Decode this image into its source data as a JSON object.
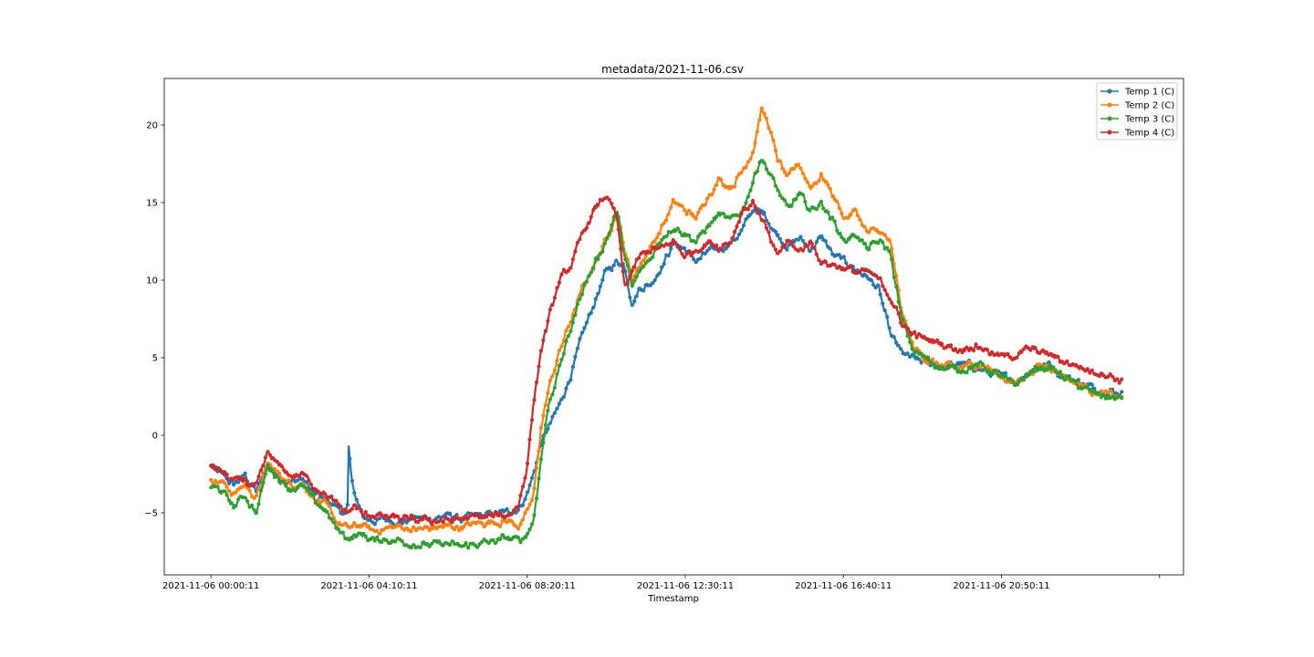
{
  "chart_data": {
    "type": "line",
    "title": "metadata/2021-11-06.csv",
    "xlabel": "Timestamp",
    "ylabel": "",
    "x_tick_labels": [
      "2021-11-06 00:00:11",
      "2021-11-06 04:10:11",
      "2021-11-06 08:20:11",
      "2021-11-06 12:30:11",
      "2021-11-06 16:40:11",
      "2021-11-06 20:50:11"
    ],
    "x_tick_hours": [
      0,
      4.1667,
      8.3333,
      12.5,
      16.6667,
      20.8333
    ],
    "xlim_hours": [
      -1.23,
      25.63
    ],
    "ylim": [
      -9.0,
      23.0
    ],
    "y_ticks": [
      -5,
      0,
      5,
      10,
      15,
      20
    ],
    "legend_position": "top-right",
    "grid": false,
    "series": [
      {
        "name": "Temp 1 (C)",
        "color": "#1f77b4",
        "x": [
          0,
          0.3,
          0.6,
          0.9,
          1.0,
          1.2,
          1.5,
          1.8,
          2.1,
          2.4,
          2.7,
          3.0,
          3.3,
          3.55,
          3.6,
          3.63,
          3.7,
          3.8,
          4.0,
          4.3,
          4.6,
          5.0,
          5.4,
          5.8,
          6.2,
          6.6,
          7.0,
          7.4,
          7.8,
          8.1,
          8.3,
          8.5,
          8.7,
          8.9,
          9.2,
          9.5,
          9.8,
          10.1,
          10.4,
          10.7,
          10.9,
          11.1,
          11.3,
          11.6,
          11.9,
          12.2,
          12.5,
          12.8,
          13.1,
          13.4,
          13.7,
          14.0,
          14.3,
          14.6,
          14.9,
          15.2,
          15.5,
          15.8,
          16.1,
          16.4,
          16.7,
          17.0,
          17.3,
          17.6,
          17.9,
          18.2,
          18.5,
          18.8,
          19.1,
          19.4,
          19.7,
          20.0,
          20.3,
          20.6,
          20.9,
          21.2,
          21.5,
          21.8,
          22.1,
          22.4,
          22.7,
          23.0,
          23.3,
          23.6,
          23.9,
          24.0
        ],
        "y": [
          -2.0,
          -2.6,
          -3.2,
          -2.6,
          -3.0,
          -3.6,
          -2.0,
          -2.6,
          -3.0,
          -2.8,
          -3.7,
          -4.2,
          -4.5,
          -5.2,
          -4.7,
          -1.0,
          -2.5,
          -4.0,
          -5.3,
          -5.5,
          -5.4,
          -5.6,
          -5.3,
          -5.4,
          -5.2,
          -5.4,
          -5.2,
          -5.1,
          -5.0,
          -4.7,
          -4.0,
          -2.5,
          -0.5,
          0.5,
          2.0,
          4.0,
          6.5,
          8.5,
          10.5,
          11.2,
          11.0,
          8.5,
          9.5,
          9.8,
          11.0,
          12.4,
          12.0,
          11.2,
          11.8,
          12.0,
          12.4,
          13.2,
          14.6,
          14.2,
          13.0,
          12.2,
          12.7,
          12.0,
          12.8,
          11.6,
          11.2,
          10.7,
          10.2,
          9.4,
          6.5,
          5.3,
          4.9,
          4.7,
          4.5,
          4.4,
          4.6,
          4.5,
          4.2,
          3.9,
          3.7,
          3.5,
          4.0,
          4.4,
          4.6,
          3.9,
          3.6,
          3.3,
          3.0,
          2.9,
          2.8,
          2.7
        ]
      },
      {
        "name": "Temp 2 (C)",
        "color": "#ff7f0e",
        "x": [
          0,
          0.3,
          0.6,
          0.9,
          1.0,
          1.2,
          1.5,
          1.8,
          2.1,
          2.4,
          2.7,
          3.0,
          3.3,
          3.6,
          4.0,
          4.3,
          4.6,
          5.0,
          5.4,
          5.8,
          6.2,
          6.6,
          7.0,
          7.4,
          7.8,
          8.1,
          8.3,
          8.5,
          8.7,
          8.9,
          9.2,
          9.5,
          9.8,
          10.1,
          10.4,
          10.7,
          10.9,
          11.1,
          11.3,
          11.6,
          11.9,
          12.2,
          12.5,
          12.8,
          13.1,
          13.4,
          13.7,
          14.0,
          14.3,
          14.5,
          14.7,
          14.9,
          15.2,
          15.5,
          15.8,
          16.1,
          16.4,
          16.7,
          17.0,
          17.3,
          17.6,
          17.9,
          18.2,
          18.5,
          18.8,
          19.1,
          19.4,
          19.7,
          20.0,
          20.3,
          20.6,
          20.9,
          21.2,
          21.5,
          21.8,
          22.1,
          22.4,
          22.7,
          23.0,
          23.3,
          23.6,
          23.9,
          24.0
        ],
        "y": [
          -2.8,
          -3.0,
          -3.8,
          -3.2,
          -3.5,
          -4.0,
          -1.9,
          -2.5,
          -3.2,
          -3.0,
          -4.0,
          -4.5,
          -5.5,
          -6.0,
          -5.8,
          -6.2,
          -6.0,
          -5.9,
          -6.1,
          -6.0,
          -5.9,
          -5.9,
          -5.7,
          -5.6,
          -5.5,
          -5.8,
          -5.2,
          -4.0,
          0.5,
          3.0,
          5.5,
          7.5,
          9.5,
          11.0,
          12.5,
          14.5,
          12.0,
          10.0,
          11.0,
          12.2,
          13.5,
          15.0,
          14.5,
          14.0,
          15.5,
          16.5,
          16.0,
          17.0,
          18.5,
          21.0,
          20.0,
          18.0,
          16.5,
          17.5,
          16.0,
          16.8,
          15.5,
          14.0,
          14.5,
          13.0,
          13.2,
          12.4,
          8.0,
          5.7,
          5.0,
          4.6,
          4.4,
          4.3,
          4.5,
          4.6,
          4.2,
          3.7,
          3.3,
          4.0,
          4.4,
          4.5,
          4.0,
          3.5,
          3.2,
          2.8,
          2.6,
          2.5,
          2.4
        ]
      },
      {
        "name": "Temp 3 (C)",
        "color": "#2ca02c",
        "x": [
          0,
          0.3,
          0.6,
          0.9,
          1.0,
          1.2,
          1.5,
          1.8,
          2.1,
          2.4,
          2.7,
          3.0,
          3.3,
          3.6,
          4.0,
          4.3,
          4.6,
          5.0,
          5.4,
          5.8,
          6.2,
          6.6,
          7.0,
          7.4,
          7.8,
          8.1,
          8.3,
          8.5,
          8.7,
          8.9,
          9.2,
          9.5,
          9.8,
          10.1,
          10.4,
          10.7,
          10.9,
          11.1,
          11.3,
          11.6,
          11.9,
          12.2,
          12.5,
          12.8,
          13.1,
          13.4,
          13.7,
          14.0,
          14.3,
          14.5,
          14.7,
          14.9,
          15.2,
          15.5,
          15.8,
          16.1,
          16.4,
          16.7,
          17.0,
          17.3,
          17.6,
          17.9,
          18.2,
          18.5,
          18.8,
          19.1,
          19.4,
          19.7,
          20.0,
          20.3,
          20.6,
          20.9,
          21.2,
          21.5,
          21.8,
          22.1,
          22.4,
          22.7,
          23.0,
          23.3,
          23.6,
          23.9,
          24.0
        ],
        "y": [
          -3.3,
          -3.6,
          -4.6,
          -3.8,
          -4.3,
          -5.0,
          -1.9,
          -2.8,
          -3.4,
          -3.3,
          -4.2,
          -4.8,
          -6.0,
          -6.6,
          -6.4,
          -6.8,
          -6.7,
          -6.8,
          -7.0,
          -7.1,
          -7.0,
          -7.2,
          -7.0,
          -6.9,
          -6.6,
          -6.8,
          -6.5,
          -5.5,
          -1.5,
          2.0,
          4.5,
          7.0,
          9.5,
          11.0,
          12.5,
          14.5,
          11.5,
          9.5,
          10.5,
          11.5,
          12.8,
          13.5,
          13.0,
          12.5,
          13.5,
          14.2,
          13.8,
          14.5,
          16.5,
          18.0,
          17.0,
          16.0,
          14.5,
          15.5,
          14.5,
          15.0,
          13.8,
          12.5,
          13.0,
          12.0,
          12.5,
          11.8,
          7.5,
          5.5,
          5.0,
          4.6,
          4.3,
          4.2,
          4.4,
          4.5,
          4.1,
          3.6,
          3.2,
          3.9,
          4.3,
          4.4,
          3.9,
          3.4,
          3.0,
          2.7,
          2.5,
          2.4,
          2.3
        ]
      },
      {
        "name": "Temp 4 (C)",
        "color": "#d62728",
        "x": [
          0,
          0.3,
          0.6,
          0.9,
          1.0,
          1.2,
          1.5,
          1.8,
          2.1,
          2.4,
          2.7,
          3.0,
          3.3,
          3.6,
          3.8,
          4.0,
          4.3,
          4.6,
          5.0,
          5.4,
          5.8,
          6.2,
          6.6,
          7.0,
          7.4,
          7.8,
          8.1,
          8.3,
          8.5,
          8.7,
          8.9,
          9.2,
          9.5,
          9.8,
          10.1,
          10.4,
          10.7,
          10.9,
          11.1,
          11.3,
          11.6,
          11.9,
          12.2,
          12.5,
          12.8,
          13.1,
          13.4,
          13.7,
          14.0,
          14.3,
          14.6,
          14.9,
          15.2,
          15.5,
          15.8,
          16.1,
          16.4,
          16.7,
          17.0,
          17.3,
          17.6,
          17.9,
          18.2,
          18.5,
          18.8,
          19.1,
          19.4,
          19.7,
          20.0,
          20.3,
          20.6,
          20.9,
          21.2,
          21.5,
          21.8,
          22.1,
          22.4,
          22.7,
          23.0,
          23.3,
          23.6,
          23.9,
          24.0
        ],
        "y": [
          -1.9,
          -2.4,
          -3.0,
          -2.8,
          -3.2,
          -3.4,
          -1.2,
          -2.0,
          -2.6,
          -2.5,
          -3.2,
          -3.7,
          -4.5,
          -5.0,
          -4.5,
          -5.2,
          -5.1,
          -5.3,
          -5.4,
          -5.5,
          -5.5,
          -5.5,
          -5.4,
          -5.3,
          -5.2,
          -5.2,
          -4.5,
          -2.5,
          2.0,
          5.5,
          7.5,
          10.0,
          11.0,
          13.0,
          14.5,
          15.5,
          14.0,
          9.5,
          10.5,
          11.5,
          12.0,
          12.0,
          12.5,
          11.5,
          12.0,
          12.5,
          12.2,
          12.5,
          14.5,
          15.0,
          13.5,
          11.5,
          12.5,
          11.8,
          12.5,
          11.2,
          11.0,
          10.8,
          10.5,
          10.5,
          10.0,
          9.0,
          7.2,
          6.5,
          6.2,
          6.0,
          5.8,
          5.5,
          5.8,
          5.7,
          5.3,
          5.0,
          5.2,
          5.5,
          5.4,
          5.2,
          4.8,
          4.6,
          4.3,
          4.1,
          4.0,
          3.6,
          3.5
        ]
      }
    ]
  }
}
